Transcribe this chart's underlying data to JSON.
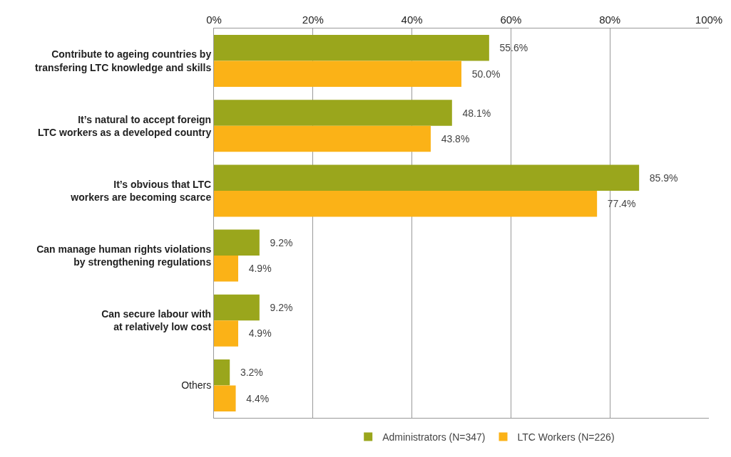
{
  "chart_data": {
    "type": "bar",
    "orientation": "horizontal",
    "categories": [
      "Contribute to ageing countries by transfering LTC knowledge and skills",
      "It’s natural to accept foreign LTC workers as a developed country",
      "It’s obvious that LTC workers are becoming scarce",
      "Can manage human rights violations by strengthening regulations",
      "Can secure labour with at relatively low cost",
      "Others"
    ],
    "series": [
      {
        "name": "Administrators (N=347)",
        "color": "#9aa61c",
        "values": [
          55.6,
          48.1,
          85.9,
          9.2,
          9.2,
          3.2
        ],
        "value_labels": [
          "55.6%",
          "48.1%",
          "85.9%",
          "9.2%",
          "9.2%",
          "3.2%"
        ]
      },
      {
        "name": "LTC Workers (N=226)",
        "color": "#fbb217",
        "values": [
          50.0,
          43.8,
          77.4,
          4.9,
          4.9,
          4.4
        ],
        "value_labels": [
          "50.0%",
          "43.8%",
          "77.4%",
          "4.9%",
          "4.9%",
          "4.4%"
        ]
      }
    ],
    "xlim": [
      0,
      100
    ],
    "xticks": [
      {
        "value": 0,
        "label": "0%"
      },
      {
        "value": 20,
        "label": "20%"
      },
      {
        "value": 40,
        "label": "40%"
      },
      {
        "value": 60,
        "label": "60%"
      },
      {
        "value": 80,
        "label": "80%"
      },
      {
        "value": 100,
        "label": "100%"
      }
    ],
    "grid": "x",
    "legend": "bottom"
  }
}
